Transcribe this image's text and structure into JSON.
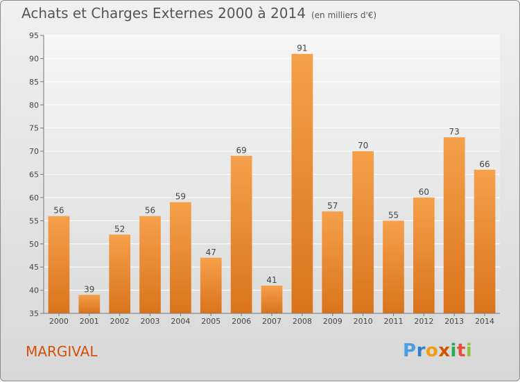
{
  "header": {
    "title": "Achats et Charges Externes 2000 à 2014",
    "unit": "(en milliers d'€)"
  },
  "footer": {
    "town": "MARGIVAL",
    "logo_letters": [
      "P",
      "r",
      "o",
      "x",
      "i",
      "t",
      "i"
    ],
    "logo_colors": [
      "#4a9de0",
      "#2f7fc9",
      "#f39c12",
      "#d35400",
      "#2fa84f",
      "#e74c3c",
      "#8cc63f"
    ]
  },
  "chart_data": {
    "type": "bar",
    "title": "Achats et Charges Externes 2000 à 2014",
    "subtitle": "(en milliers d'€)",
    "categories": [
      "2000",
      "2001",
      "2002",
      "2003",
      "2004",
      "2005",
      "2006",
      "2007",
      "2008",
      "2009",
      "2010",
      "2011",
      "2012",
      "2013",
      "2014"
    ],
    "values": [
      56,
      39,
      52,
      56,
      59,
      47,
      69,
      41,
      91,
      57,
      70,
      55,
      60,
      73,
      66
    ],
    "ylim": [
      35,
      95
    ],
    "yticks": [
      35,
      40,
      45,
      50,
      55,
      60,
      65,
      70,
      75,
      80,
      85,
      90,
      95
    ],
    "grid": true,
    "bar_color": "#f5a04a",
    "bar_color_dark": "#d9741c"
  }
}
